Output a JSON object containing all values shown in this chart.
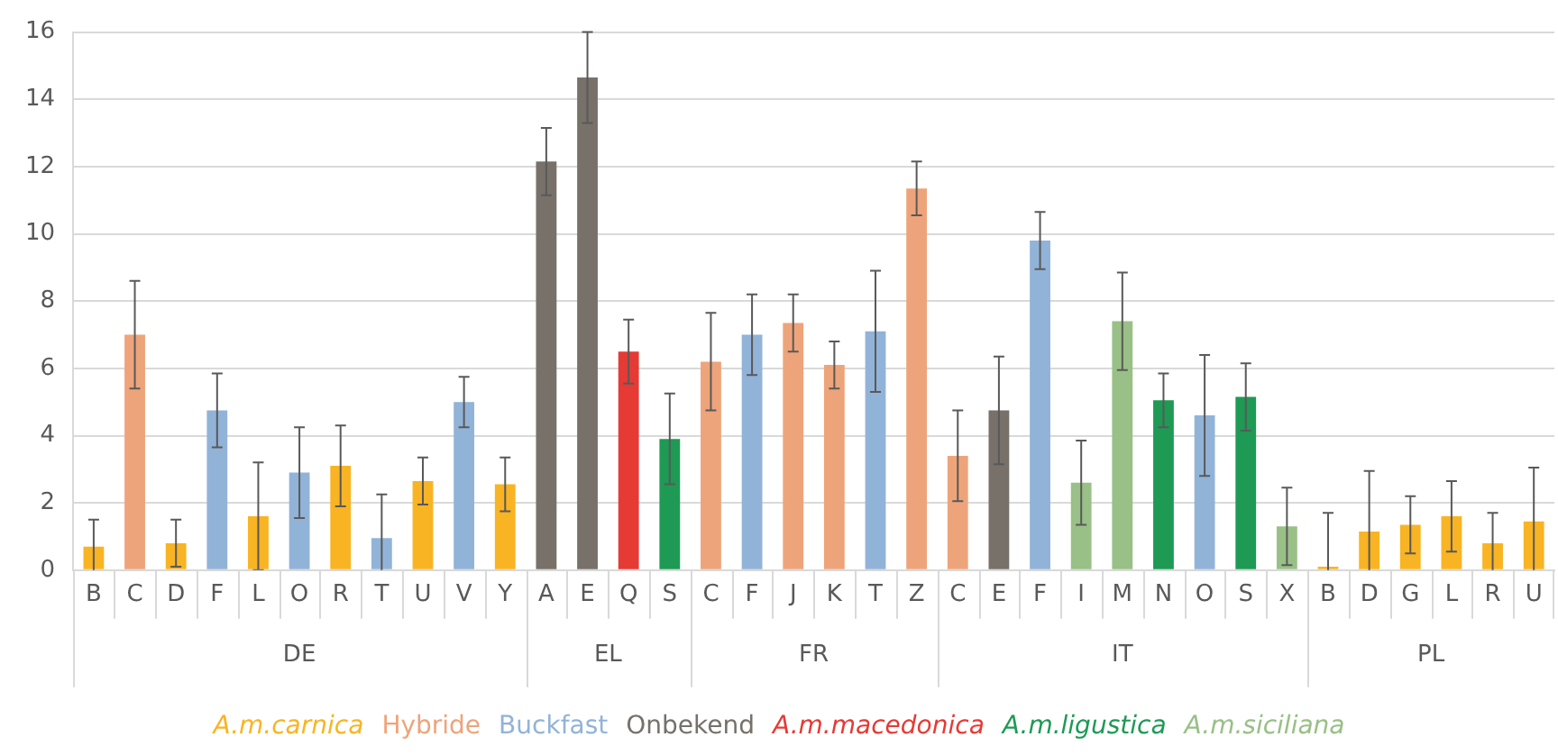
{
  "chart_data": {
    "type": "bar",
    "categories": [
      "B",
      "C",
      "D",
      "F",
      "L",
      "O",
      "R",
      "T",
      "U",
      "V",
      "Y",
      "A",
      "E",
      "Q",
      "S",
      "C",
      "F",
      "J",
      "K",
      "T",
      "Z",
      "C",
      "E",
      "F",
      "I",
      "M",
      "N",
      "O",
      "S",
      "X",
      "B",
      "D",
      "G",
      "L",
      "R",
      "U"
    ],
    "series": [
      {
        "name": "A.m.carnica",
        "color": "#f9b423",
        "values": [
          0.7,
          null,
          0.8,
          null,
          1.6,
          null,
          3.1,
          null,
          2.65,
          null,
          2.55,
          null,
          null,
          null,
          null,
          null,
          null,
          null,
          null,
          null,
          null,
          null,
          null,
          null,
          null,
          null,
          null,
          null,
          null,
          null,
          0.1,
          1.15,
          1.35,
          1.6,
          0.8,
          1.45
        ],
        "errors": [
          0.8,
          null,
          0.7,
          null,
          1.6,
          null,
          1.2,
          null,
          0.7,
          null,
          0.8,
          null,
          null,
          null,
          null,
          null,
          null,
          null,
          null,
          null,
          null,
          null,
          null,
          null,
          null,
          null,
          null,
          null,
          null,
          null,
          1.6,
          1.8,
          0.85,
          1.05,
          0.9,
          1.6
        ]
      },
      {
        "name": "Hybride",
        "color": "#eea47a",
        "values": [
          null,
          7.0,
          null,
          null,
          null,
          null,
          null,
          null,
          null,
          null,
          null,
          null,
          null,
          null,
          null,
          6.2,
          null,
          7.35,
          6.1,
          null,
          11.35,
          3.4,
          null,
          null,
          null,
          null,
          null,
          null,
          null,
          null,
          null,
          null,
          null,
          null,
          null,
          null
        ],
        "errors": [
          null,
          1.6,
          null,
          null,
          null,
          null,
          null,
          null,
          null,
          null,
          null,
          null,
          null,
          null,
          null,
          1.45,
          null,
          0.85,
          0.7,
          null,
          0.8,
          1.35,
          null,
          null,
          null,
          null,
          null,
          null,
          null,
          null,
          null,
          null,
          null,
          null,
          null,
          null
        ]
      },
      {
        "name": "Buckfast",
        "color": "#92b3d8",
        "values": [
          null,
          null,
          null,
          4.75,
          null,
          2.9,
          null,
          0.95,
          null,
          5.0,
          null,
          null,
          null,
          null,
          null,
          null,
          7.0,
          null,
          null,
          7.1,
          null,
          null,
          null,
          9.8,
          null,
          null,
          null,
          4.6,
          null,
          null,
          null,
          null,
          null,
          null,
          null,
          null
        ],
        "errors": [
          null,
          null,
          null,
          1.1,
          null,
          1.35,
          null,
          1.3,
          null,
          0.75,
          null,
          null,
          null,
          null,
          null,
          null,
          1.2,
          null,
          null,
          1.8,
          null,
          null,
          null,
          0.85,
          null,
          null,
          null,
          1.8,
          null,
          null,
          null,
          null,
          null,
          null,
          null,
          null
        ]
      },
      {
        "name": "Onbekend",
        "color": "#77716a",
        "values": [
          null,
          null,
          null,
          null,
          null,
          null,
          null,
          null,
          null,
          null,
          null,
          12.15,
          14.65,
          null,
          null,
          null,
          null,
          null,
          null,
          null,
          null,
          null,
          4.75,
          null,
          null,
          null,
          null,
          null,
          null,
          null,
          null,
          null,
          null,
          null,
          null,
          null
        ],
        "errors": [
          null,
          null,
          null,
          null,
          null,
          null,
          null,
          null,
          null,
          null,
          null,
          1.0,
          1.35,
          null,
          null,
          null,
          null,
          null,
          null,
          null,
          null,
          null,
          1.6,
          null,
          null,
          null,
          null,
          null,
          null,
          null,
          null,
          null,
          null,
          null,
          null,
          null
        ]
      },
      {
        "name": "A.m.macedonica",
        "color": "#e63a35",
        "values": [
          null,
          null,
          null,
          null,
          null,
          null,
          null,
          null,
          null,
          null,
          null,
          null,
          null,
          6.5,
          null,
          null,
          null,
          null,
          null,
          null,
          null,
          null,
          null,
          null,
          null,
          null,
          null,
          null,
          null,
          null,
          null,
          null,
          null,
          null,
          null,
          null
        ],
        "errors": [
          null,
          null,
          null,
          null,
          null,
          null,
          null,
          null,
          null,
          null,
          null,
          null,
          null,
          0.95,
          null,
          null,
          null,
          null,
          null,
          null,
          null,
          null,
          null,
          null,
          null,
          null,
          null,
          null,
          null,
          null,
          null,
          null,
          null,
          null,
          null,
          null
        ]
      },
      {
        "name": "A.m.ligustica",
        "color": "#1e9a55",
        "values": [
          null,
          null,
          null,
          null,
          null,
          null,
          null,
          null,
          null,
          null,
          null,
          null,
          null,
          null,
          3.9,
          null,
          null,
          null,
          null,
          null,
          null,
          null,
          null,
          null,
          null,
          null,
          5.05,
          null,
          5.15,
          null,
          null,
          null,
          null,
          null,
          null,
          null
        ],
        "errors": [
          null,
          null,
          null,
          null,
          null,
          null,
          null,
          null,
          null,
          null,
          null,
          null,
          null,
          null,
          1.35,
          null,
          null,
          null,
          null,
          null,
          null,
          null,
          null,
          null,
          null,
          null,
          0.8,
          null,
          1.0,
          null,
          null,
          null,
          null,
          null,
          null,
          null
        ]
      },
      {
        "name": "A.m.siciliana",
        "color": "#99c086",
        "values": [
          null,
          null,
          null,
          null,
          null,
          null,
          null,
          null,
          null,
          null,
          null,
          null,
          null,
          null,
          null,
          null,
          null,
          null,
          null,
          null,
          null,
          null,
          null,
          null,
          2.6,
          7.4,
          null,
          null,
          null,
          1.3,
          null,
          null,
          null,
          null,
          null,
          null
        ],
        "errors": [
          null,
          null,
          null,
          null,
          null,
          null,
          null,
          null,
          null,
          null,
          null,
          null,
          null,
          null,
          null,
          null,
          null,
          null,
          null,
          null,
          null,
          null,
          null,
          null,
          1.25,
          1.45,
          null,
          null,
          null,
          1.15,
          null,
          null,
          null,
          null,
          null,
          null
        ]
      }
    ],
    "ylim": [
      0,
      16
    ],
    "yticks": [
      0,
      2,
      4,
      6,
      8,
      10,
      12,
      14,
      16
    ],
    "grid": "y",
    "legend": "bottom",
    "annotations": [
      "DE",
      "EL",
      "FR",
      "IT",
      "PL"
    ]
  }
}
